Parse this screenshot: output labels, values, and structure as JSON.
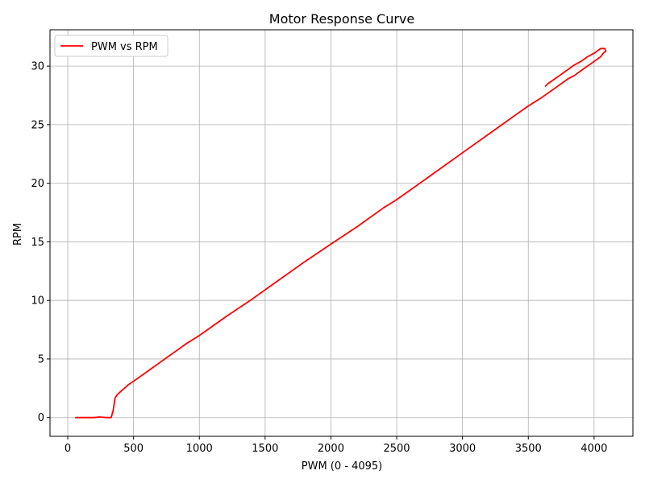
{
  "chart_data": {
    "type": "line",
    "title": "Motor Response Curve",
    "xlabel": "PWM (0 - 4095)",
    "ylabel": "RPM",
    "xlim": [
      -135,
      4295
    ],
    "ylim": [
      -1.6,
      33.1
    ],
    "xticks": [
      0,
      500,
      1000,
      1500,
      2000,
      2500,
      3000,
      3500,
      4000
    ],
    "yticks": [
      0,
      5,
      10,
      15,
      20,
      25,
      30
    ],
    "grid": true,
    "legend_position": "top-left",
    "series": [
      {
        "name": "PWM vs RPM",
        "color": "#ff0000",
        "x": [
          60,
          100,
          150,
          200,
          240,
          270,
          300,
          330,
          345,
          360,
          380,
          420,
          460,
          500,
          550,
          600,
          650,
          700,
          750,
          800,
          900,
          1000,
          1200,
          1400,
          1600,
          1800,
          2000,
          2200,
          2400,
          2500,
          2600,
          2800,
          3000,
          3200,
          3400,
          3500,
          3600,
          3700,
          3800,
          3850,
          3900,
          4000,
          4050,
          4070,
          4090,
          4080,
          4050,
          4000,
          3950,
          3900,
          3850,
          3800,
          3750,
          3700,
          3650,
          3630
        ],
        "y": [
          0.0,
          0.0,
          0.0,
          0.0,
          0.05,
          0.02,
          0.0,
          0.0,
          0.6,
          1.7,
          2.0,
          2.4,
          2.8,
          3.1,
          3.5,
          3.9,
          4.3,
          4.7,
          5.1,
          5.5,
          6.3,
          7.0,
          8.6,
          10.1,
          11.7,
          13.3,
          14.8,
          16.3,
          17.9,
          18.6,
          19.4,
          21.0,
          22.6,
          24.2,
          25.8,
          26.6,
          27.3,
          28.1,
          28.9,
          29.2,
          29.6,
          30.4,
          30.8,
          31.1,
          31.3,
          31.5,
          31.5,
          31.1,
          30.8,
          30.4,
          30.1,
          29.7,
          29.3,
          28.9,
          28.5,
          28.3
        ]
      }
    ]
  }
}
